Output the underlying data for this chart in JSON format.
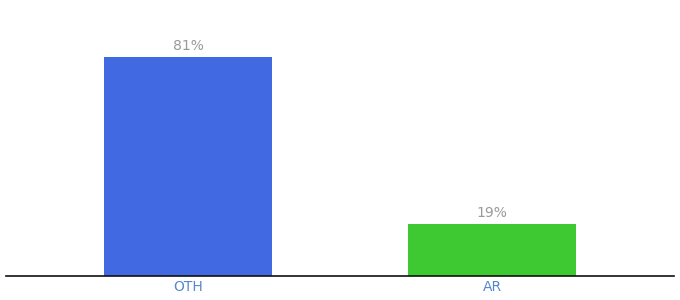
{
  "categories": [
    "OTH",
    "AR"
  ],
  "values": [
    81,
    19
  ],
  "bar_colors": [
    "#4169e1",
    "#3ec832"
  ],
  "labels": [
    "81%",
    "19%"
  ],
  "ylim": [
    0,
    100
  ],
  "background_color": "#ffffff",
  "xlabel_fontsize": 10,
  "label_fontsize": 10,
  "label_color": "#999999",
  "bar_width": 0.55,
  "figsize": [
    6.8,
    3.0
  ],
  "dpi": 100
}
